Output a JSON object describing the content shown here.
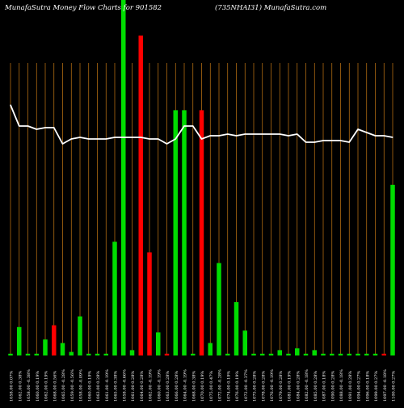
{
  "header": {
    "left_title": "MunafaSutra  Money Flow  Charts for 901582",
    "right_title": "(735NHAI31) MunafaSutra.com"
  },
  "colors": {
    "background": "#000000",
    "grid": "#c87a14",
    "up": "#00dd00",
    "down": "#ff0000",
    "line": "#ffffff",
    "text": "#ffffff"
  },
  "chart_data": {
    "type": "bar",
    "categories": [
      "1058.00 0.07%",
      "1062.00 0.38%",
      "1058.00 -0.38%",
      "1060.00 0.19%",
      "1062.00 0.19%",
      "1068.00 0.56%",
      "1065.00 -0.28%",
      "1059.00 -0.56%",
      "1058.00 -0.09%",
      "1060.00 0.19%",
      "1063.00 0.28%",
      "1061.00 -0.19%",
      "1065.00 0.38%",
      "1058.00 -0.66%",
      "1061.00 0.28%",
      "1064.00 0.28%",
      "1062.00 -0.19%",
      "1060.00 -0.19%",
      "1063.00 0.28%",
      "1066.00 0.28%",
      "1064.00 -0.19%",
      "1068.00 0.38%",
      "1070.00 0.19%",
      "1075.00 0.47%",
      "1072.00 -0.28%",
      "1074.00 0.19%",
      "1076.00 0.19%",
      "1072.00 -0.37%",
      "1075.00 0.28%",
      "1078.00 0.28%",
      "1076.00 -0.19%",
      "1079.00 0.28%",
      "1081.00 0.19%",
      "1084.00 0.28%",
      "1082.00 -0.18%",
      "1085.00 0.28%",
      "1087.00 0.18%",
      "1090.00 0.28%",
      "1088.00 -0.18%",
      "1091.00 0.28%",
      "1094.00 0.27%",
      "1096.00 0.18%",
      "1099.00 0.27%",
      "1097.00 -0.18%",
      "1100.00 0.27%"
    ],
    "bar_direction": [
      "up",
      "up",
      "up",
      "up",
      "up",
      "down",
      "up",
      "up",
      "up",
      "up",
      "up",
      "up",
      "up",
      "up",
      "up",
      "down",
      "down",
      "up",
      "down",
      "up",
      "up",
      "up",
      "down",
      "up",
      "up",
      "up",
      "up",
      "up",
      "up",
      "up",
      "up",
      "up",
      "up",
      "up",
      "up",
      "up",
      "up",
      "up",
      "up",
      "up",
      "up",
      "up",
      "up",
      "down",
      "up"
    ],
    "bar_values": [
      0.5,
      8,
      0.5,
      0.5,
      4.5,
      8.5,
      3.5,
      1,
      11,
      0.5,
      0.5,
      0.5,
      32,
      100,
      1.5,
      90,
      29,
      6.5,
      0.5,
      69,
      69,
      0.5,
      69,
      3.5,
      26,
      0.5,
      15,
      7,
      0.5,
      0.5,
      0.5,
      1.5,
      0.5,
      2,
      0.5,
      1.5,
      0.5,
      0.5,
      0.5,
      0.5,
      0.5,
      0.5,
      0.5,
      0.5,
      48
    ],
    "line_values": [
      85,
      72,
      72,
      70,
      71,
      71,
      61,
      64,
      65,
      64,
      64,
      64,
      65,
      65,
      65,
      65,
      64,
      64,
      61,
      64,
      72,
      72,
      64,
      66,
      66,
      67,
      66,
      67,
      67,
      67,
      67,
      67,
      66,
      67,
      62,
      62,
      63,
      63,
      63,
      62,
      70,
      68,
      66,
      66,
      65
    ],
    "ylim": [
      0,
      100
    ],
    "grid": "vertical lines"
  }
}
